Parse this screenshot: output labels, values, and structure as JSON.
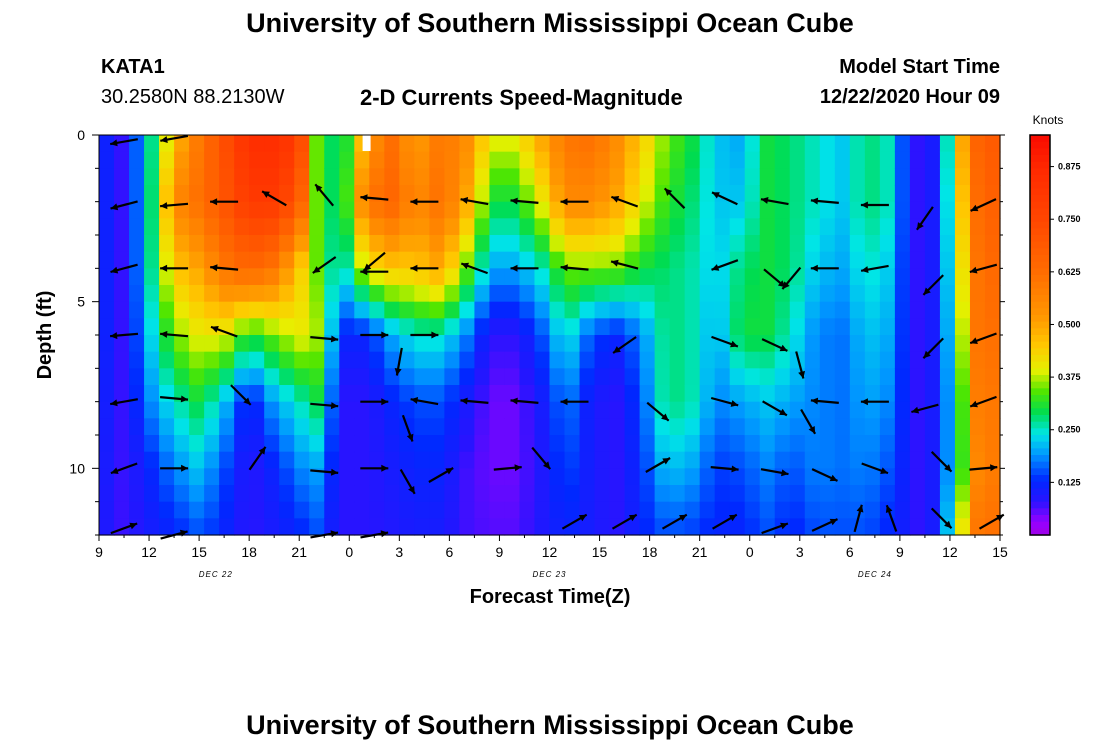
{
  "title_top": "University of Southern Mississippi Ocean Cube",
  "title_bottom": "University of Southern Mississippi Ocean Cube",
  "station": {
    "id": "KATA1",
    "coords": "30.2580N 88.2130W"
  },
  "subtitle": "2-D Currents Speed-Magnitude",
  "model": {
    "label": "Model Start Time",
    "value": "12/22/2020 Hour 09"
  },
  "chart_data": {
    "type": "heatmap",
    "title": "2-D Currents Speed-Magnitude",
    "xlabel": "Forecast Time(Z)",
    "ylabel": "Depth (ft)",
    "xlim": [
      0,
      54
    ],
    "ylim": [
      12,
      0
    ],
    "x_ticks": [
      "9",
      "12",
      "15",
      "18",
      "21",
      "0",
      "3",
      "6",
      "9",
      "12",
      "15",
      "18",
      "21",
      "0",
      "3",
      "6",
      "9",
      "12",
      "15"
    ],
    "y_ticks": [
      {
        "value": 0,
        "label": "0"
      },
      {
        "value": 5,
        "label": "5"
      },
      {
        "value": 10,
        "label": "10"
      }
    ],
    "dates": [
      {
        "hour": 7,
        "label": "DEC 22"
      },
      {
        "hour": 27,
        "label": "DEC 23"
      },
      {
        "hour": 46.5,
        "label": "DEC 24"
      }
    ],
    "colorbar": {
      "unit": "Knots",
      "min": 0.0,
      "max": 0.95,
      "ticks": [
        "0.125",
        "0.250",
        "0.375",
        "0.500",
        "0.625",
        "0.750",
        "0.875"
      ],
      "tick_values": [
        0.125,
        0.25,
        0.375,
        0.5,
        0.625,
        0.75,
        0.875
      ]
    },
    "depths": [
      0,
      2,
      4,
      6,
      8,
      10,
      12
    ],
    "speed_profiles": [
      {
        "hour": 0,
        "values": [
          0.13,
          0.13,
          0.13,
          0.13,
          0.12,
          0.11,
          0.1
        ]
      },
      {
        "hour": 1.5,
        "values": [
          0.07,
          0.07,
          0.07,
          0.07,
          0.07,
          0.07,
          0.07
        ]
      },
      {
        "hour": 3,
        "values": [
          0.25,
          0.25,
          0.25,
          0.22,
          0.18,
          0.12,
          0.1
        ]
      },
      {
        "hour": 4.5,
        "values": [
          0.45,
          0.55,
          0.45,
          0.35,
          0.25,
          0.18,
          0.12
        ]
      },
      {
        "hour": 6,
        "values": [
          0.6,
          0.62,
          0.5,
          0.4,
          0.3,
          0.22,
          0.15
        ]
      },
      {
        "hour": 7.5,
        "values": [
          0.72,
          0.7,
          0.6,
          0.4,
          0.22,
          0.15,
          0.12
        ]
      },
      {
        "hour": 9,
        "values": [
          0.85,
          0.8,
          0.65,
          0.3,
          0.1,
          0.08,
          0.08
        ]
      },
      {
        "hour": 10.5,
        "values": [
          0.85,
          0.8,
          0.6,
          0.35,
          0.2,
          0.12,
          0.1
        ]
      },
      {
        "hour": 12,
        "values": [
          0.8,
          0.7,
          0.45,
          0.4,
          0.25,
          0.18,
          0.12
        ]
      },
      {
        "hour": 13,
        "values": [
          0.35,
          0.35,
          0.35,
          0.38,
          0.3,
          0.2,
          0.15
        ]
      },
      {
        "hour": 14.5,
        "values": [
          0.25,
          0.25,
          0.22,
          0.12,
          0.08,
          0.08,
          0.08
        ]
      },
      {
        "hour": 16,
        "values": [
          0.5,
          0.6,
          0.4,
          0.12,
          0.08,
          0.08,
          0.08
        ]
      },
      {
        "hour": 17.5,
        "values": [
          0.62,
          0.65,
          0.45,
          0.2,
          0.12,
          0.1,
          0.09
        ]
      },
      {
        "hour": 19,
        "values": [
          0.5,
          0.55,
          0.45,
          0.25,
          0.15,
          0.12,
          0.1
        ]
      },
      {
        "hour": 20.5,
        "values": [
          0.6,
          0.62,
          0.5,
          0.25,
          0.15,
          0.12,
          0.1
        ]
      },
      {
        "hour": 22,
        "values": [
          0.55,
          0.5,
          0.35,
          0.18,
          0.1,
          0.07,
          0.07
        ]
      },
      {
        "hour": 23.5,
        "values": [
          0.4,
          0.3,
          0.2,
          0.08,
          0.05,
          0.05,
          0.06
        ]
      },
      {
        "hour": 25,
        "values": [
          0.4,
          0.3,
          0.2,
          0.08,
          0.05,
          0.05,
          0.06
        ]
      },
      {
        "hour": 26.5,
        "values": [
          0.5,
          0.4,
          0.25,
          0.15,
          0.1,
          0.09,
          0.09
        ]
      },
      {
        "hour": 28,
        "values": [
          0.6,
          0.55,
          0.35,
          0.25,
          0.18,
          0.15,
          0.12
        ]
      },
      {
        "hour": 29.5,
        "values": [
          0.62,
          0.55,
          0.35,
          0.15,
          0.1,
          0.1,
          0.1
        ]
      },
      {
        "hour": 31,
        "values": [
          0.55,
          0.5,
          0.35,
          0.12,
          0.08,
          0.08,
          0.08
        ]
      },
      {
        "hour": 32.5,
        "values": [
          0.45,
          0.4,
          0.3,
          0.18,
          0.15,
          0.13,
          0.12
        ]
      },
      {
        "hour": 34,
        "values": [
          0.35,
          0.32,
          0.28,
          0.28,
          0.28,
          0.22,
          0.15
        ]
      },
      {
        "hour": 35.5,
        "values": [
          0.3,
          0.28,
          0.26,
          0.26,
          0.26,
          0.2,
          0.14
        ]
      },
      {
        "hour": 37,
        "values": [
          0.22,
          0.22,
          0.22,
          0.2,
          0.18,
          0.14,
          0.12
        ]
      },
      {
        "hour": 38.5,
        "values": [
          0.2,
          0.22,
          0.28,
          0.3,
          0.2,
          0.15,
          0.12
        ]
      },
      {
        "hour": 40,
        "values": [
          0.3,
          0.3,
          0.3,
          0.3,
          0.22,
          0.18,
          0.15
        ]
      },
      {
        "hour": 41.5,
        "values": [
          0.28,
          0.28,
          0.28,
          0.25,
          0.2,
          0.15,
          0.12
        ]
      },
      {
        "hour": 43,
        "values": [
          0.25,
          0.25,
          0.22,
          0.18,
          0.18,
          0.18,
          0.15
        ]
      },
      {
        "hour": 44.5,
        "values": [
          0.22,
          0.22,
          0.2,
          0.17,
          0.17,
          0.17,
          0.15
        ]
      },
      {
        "hour": 46,
        "values": [
          0.28,
          0.28,
          0.25,
          0.22,
          0.2,
          0.18,
          0.15
        ]
      },
      {
        "hour": 47.5,
        "values": [
          0.25,
          0.25,
          0.22,
          0.2,
          0.18,
          0.15,
          0.12
        ]
      },
      {
        "hour": 48.5,
        "values": [
          0.1,
          0.1,
          0.1,
          0.1,
          0.1,
          0.1,
          0.1
        ]
      },
      {
        "hour": 49.5,
        "values": [
          0.06,
          0.06,
          0.06,
          0.06,
          0.06,
          0.06,
          0.06
        ]
      },
      {
        "hour": 50.5,
        "values": [
          0.15,
          0.15,
          0.15,
          0.15,
          0.15,
          0.15,
          0.15
        ]
      },
      {
        "hour": 51.5,
        "values": [
          0.45,
          0.4,
          0.35,
          0.3,
          0.25,
          0.25,
          0.35
        ]
      },
      {
        "hour": 52.5,
        "values": [
          0.65,
          0.62,
          0.6,
          0.6,
          0.58,
          0.55,
          0.6
        ]
      },
      {
        "hour": 54,
        "values": [
          0.7,
          0.68,
          0.65,
          0.62,
          0.6,
          0.6,
          0.62
        ]
      }
    ],
    "vectors": [
      {
        "hour": 1.5,
        "depth": 0.2,
        "dir": 260
      },
      {
        "hour": 4.5,
        "depth": 0.1,
        "dir": 260
      },
      {
        "hour": 1.5,
        "depth": 2.1,
        "dir": 255
      },
      {
        "hour": 4.5,
        "depth": 2.1,
        "dir": 265
      },
      {
        "hour": 7.5,
        "depth": 2.0,
        "dir": 270
      },
      {
        "hour": 10.5,
        "depth": 1.9,
        "dir": 300
      },
      {
        "hour": 13.5,
        "depth": 1.8,
        "dir": 320
      },
      {
        "hour": 16.5,
        "depth": 1.9,
        "dir": 275
      },
      {
        "hour": 19.5,
        "depth": 2.0,
        "dir": 270
      },
      {
        "hour": 22.5,
        "depth": 2.0,
        "dir": 280
      },
      {
        "hour": 25.5,
        "depth": 2.0,
        "dir": 275
      },
      {
        "hour": 28.5,
        "depth": 2.0,
        "dir": 270
      },
      {
        "hour": 31.5,
        "depth": 2.0,
        "dir": 290
      },
      {
        "hour": 34.5,
        "depth": 1.9,
        "dir": 315
      },
      {
        "hour": 37.5,
        "depth": 1.9,
        "dir": 295
      },
      {
        "hour": 40.5,
        "depth": 2.0,
        "dir": 280
      },
      {
        "hour": 43.5,
        "depth": 2.0,
        "dir": 275
      },
      {
        "hour": 46.5,
        "depth": 2.1,
        "dir": 270
      },
      {
        "hour": 49.5,
        "depth": 2.5,
        "dir": 215
      },
      {
        "hour": 53,
        "depth": 2.1,
        "dir": 245
      },
      {
        "hour": 1.5,
        "depth": 4.0,
        "dir": 255
      },
      {
        "hour": 4.5,
        "depth": 4.0,
        "dir": 270
      },
      {
        "hour": 7.5,
        "depth": 4.0,
        "dir": 275
      },
      {
        "hour": 13.5,
        "depth": 3.9,
        "dir": 235
      },
      {
        "hour": 16.5,
        "depth": 3.8,
        "dir": 230
      },
      {
        "hour": 16.5,
        "depth": 4.1,
        "dir": 270
      },
      {
        "hour": 19.5,
        "depth": 4.0,
        "dir": 270
      },
      {
        "hour": 22.5,
        "depth": 4.0,
        "dir": 290
      },
      {
        "hour": 25.5,
        "depth": 4.0,
        "dir": 270
      },
      {
        "hour": 28.5,
        "depth": 4.0,
        "dir": 275
      },
      {
        "hour": 31.5,
        "depth": 3.9,
        "dir": 285
      },
      {
        "hour": 37.5,
        "depth": 3.9,
        "dir": 250
      },
      {
        "hour": 40.5,
        "depth": 4.3,
        "dir": 130
      },
      {
        "hour": 41.5,
        "depth": 4.3,
        "dir": 220
      },
      {
        "hour": 43.5,
        "depth": 4.0,
        "dir": 270
      },
      {
        "hour": 46.5,
        "depth": 4.0,
        "dir": 260
      },
      {
        "hour": 50,
        "depth": 4.5,
        "dir": 225
      },
      {
        "hour": 53,
        "depth": 4.0,
        "dir": 255
      },
      {
        "hour": 1.5,
        "depth": 6.0,
        "dir": 265
      },
      {
        "hour": 4.5,
        "depth": 6.0,
        "dir": 275
      },
      {
        "hour": 7.5,
        "depth": 5.9,
        "dir": 290
      },
      {
        "hour": 13.5,
        "depth": 6.1,
        "dir": 95
      },
      {
        "hour": 16.5,
        "depth": 6.0,
        "dir": 90
      },
      {
        "hour": 18,
        "depth": 6.8,
        "dir": 190
      },
      {
        "hour": 19.5,
        "depth": 6.0,
        "dir": 90
      },
      {
        "hour": 31.5,
        "depth": 6.3,
        "dir": 235
      },
      {
        "hour": 37.5,
        "depth": 6.2,
        "dir": 110
      },
      {
        "hour": 40.5,
        "depth": 6.3,
        "dir": 115
      },
      {
        "hour": 42,
        "depth": 6.9,
        "dir": 165
      },
      {
        "hour": 50,
        "depth": 6.4,
        "dir": 225
      },
      {
        "hour": 53,
        "depth": 6.1,
        "dir": 250
      },
      {
        "hour": 1.5,
        "depth": 8.0,
        "dir": 260
      },
      {
        "hour": 4.5,
        "depth": 7.9,
        "dir": 95
      },
      {
        "hour": 8.5,
        "depth": 7.8,
        "dir": 135
      },
      {
        "hour": 13.5,
        "depth": 8.1,
        "dir": 95
      },
      {
        "hour": 16.5,
        "depth": 8.0,
        "dir": 90
      },
      {
        "hour": 18.5,
        "depth": 8.8,
        "dir": 160
      },
      {
        "hour": 19.5,
        "depth": 8.0,
        "dir": 280
      },
      {
        "hour": 22.5,
        "depth": 8.0,
        "dir": 275
      },
      {
        "hour": 25.5,
        "depth": 8.0,
        "dir": 275
      },
      {
        "hour": 28.5,
        "depth": 8.0,
        "dir": 270
      },
      {
        "hour": 33.5,
        "depth": 8.3,
        "dir": 130
      },
      {
        "hour": 37.5,
        "depth": 8.0,
        "dir": 105
      },
      {
        "hour": 40.5,
        "depth": 8.2,
        "dir": 120
      },
      {
        "hour": 42.5,
        "depth": 8.6,
        "dir": 150
      },
      {
        "hour": 43.5,
        "depth": 8.0,
        "dir": 275
      },
      {
        "hour": 46.5,
        "depth": 8.0,
        "dir": 270
      },
      {
        "hour": 49.5,
        "depth": 8.2,
        "dir": 255
      },
      {
        "hour": 53,
        "depth": 8.0,
        "dir": 250
      },
      {
        "hour": 1.5,
        "depth": 10.0,
        "dir": 250
      },
      {
        "hour": 4.5,
        "depth": 10.0,
        "dir": 90
      },
      {
        "hour": 9.5,
        "depth": 9.7,
        "dir": 35
      },
      {
        "hour": 13.5,
        "depth": 10.1,
        "dir": 95
      },
      {
        "hour": 16.5,
        "depth": 10.0,
        "dir": 90
      },
      {
        "hour": 18.5,
        "depth": 10.4,
        "dir": 150
      },
      {
        "hour": 20.5,
        "depth": 10.2,
        "dir": 60
      },
      {
        "hour": 24.5,
        "depth": 10.0,
        "dir": 85
      },
      {
        "hour": 26.5,
        "depth": 9.7,
        "dir": 140
      },
      {
        "hour": 33.5,
        "depth": 9.9,
        "dir": 60
      },
      {
        "hour": 37.5,
        "depth": 10.0,
        "dir": 95
      },
      {
        "hour": 40.5,
        "depth": 10.1,
        "dir": 100
      },
      {
        "hour": 43.5,
        "depth": 10.2,
        "dir": 115
      },
      {
        "hour": 46.5,
        "depth": 10.0,
        "dir": 110
      },
      {
        "hour": 50.5,
        "depth": 9.8,
        "dir": 135
      },
      {
        "hour": 53,
        "depth": 10.0,
        "dir": 85
      },
      {
        "hour": 1.5,
        "depth": 11.8,
        "dir": 70
      },
      {
        "hour": 4.5,
        "depth": 12.0,
        "dir": 75
      },
      {
        "hour": 13.5,
        "depth": 12.0,
        "dir": 80
      },
      {
        "hour": 16.5,
        "depth": 12.0,
        "dir": 80
      },
      {
        "hour": 28.5,
        "depth": 11.6,
        "dir": 60
      },
      {
        "hour": 31.5,
        "depth": 11.6,
        "dir": 60
      },
      {
        "hour": 34.5,
        "depth": 11.6,
        "dir": 60
      },
      {
        "hour": 37.5,
        "depth": 11.6,
        "dir": 60
      },
      {
        "hour": 40.5,
        "depth": 11.8,
        "dir": 70
      },
      {
        "hour": 43.5,
        "depth": 11.7,
        "dir": 65
      },
      {
        "hour": 45.5,
        "depth": 11.5,
        "dir": 15
      },
      {
        "hour": 47.5,
        "depth": 11.5,
        "dir": 340
      },
      {
        "hour": 50.5,
        "depth": 11.5,
        "dir": 135
      },
      {
        "hour": 53.5,
        "depth": 11.6,
        "dir": 60
      }
    ]
  }
}
